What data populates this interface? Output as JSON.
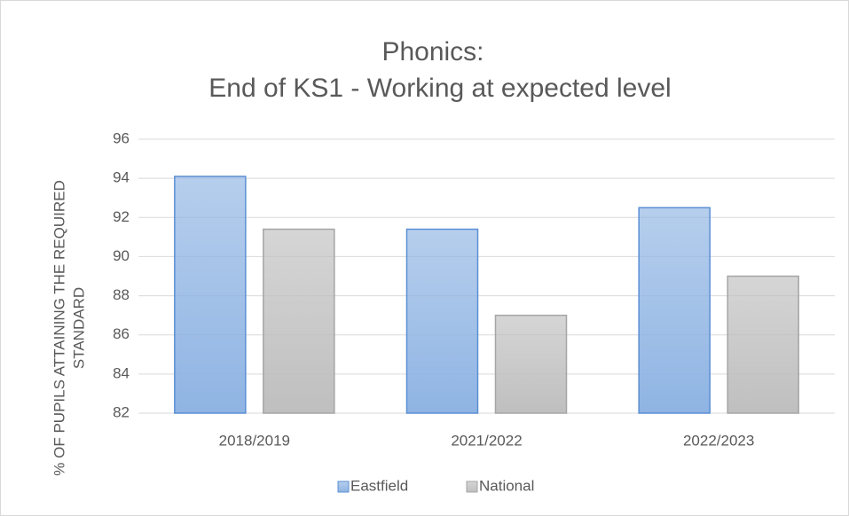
{
  "chart_data": {
    "type": "bar",
    "title": [
      "Phonics:",
      "End of KS1 - Working at expected level"
    ],
    "y_label": [
      "% OF PUPILS ATTAINING THE REQUIRED",
      "STANDARD"
    ],
    "categories": [
      "2018/2019",
      "2021/2022",
      "2022/2023"
    ],
    "series": [
      {
        "name": "Eastfield",
        "color": "#8fb4e3",
        "border": "#5b8fd4",
        "values": [
          94.1,
          91.4,
          92.5
        ]
      },
      {
        "name": "National",
        "color": "#bfbfbf",
        "border": "#a5a5a5",
        "values": [
          91.4,
          87.0,
          89.0
        ]
      }
    ],
    "ylim": [
      82,
      96
    ],
    "yticks": [
      82,
      84,
      86,
      88,
      90,
      92,
      94,
      96
    ],
    "grid": true,
    "legend": "bottom"
  }
}
